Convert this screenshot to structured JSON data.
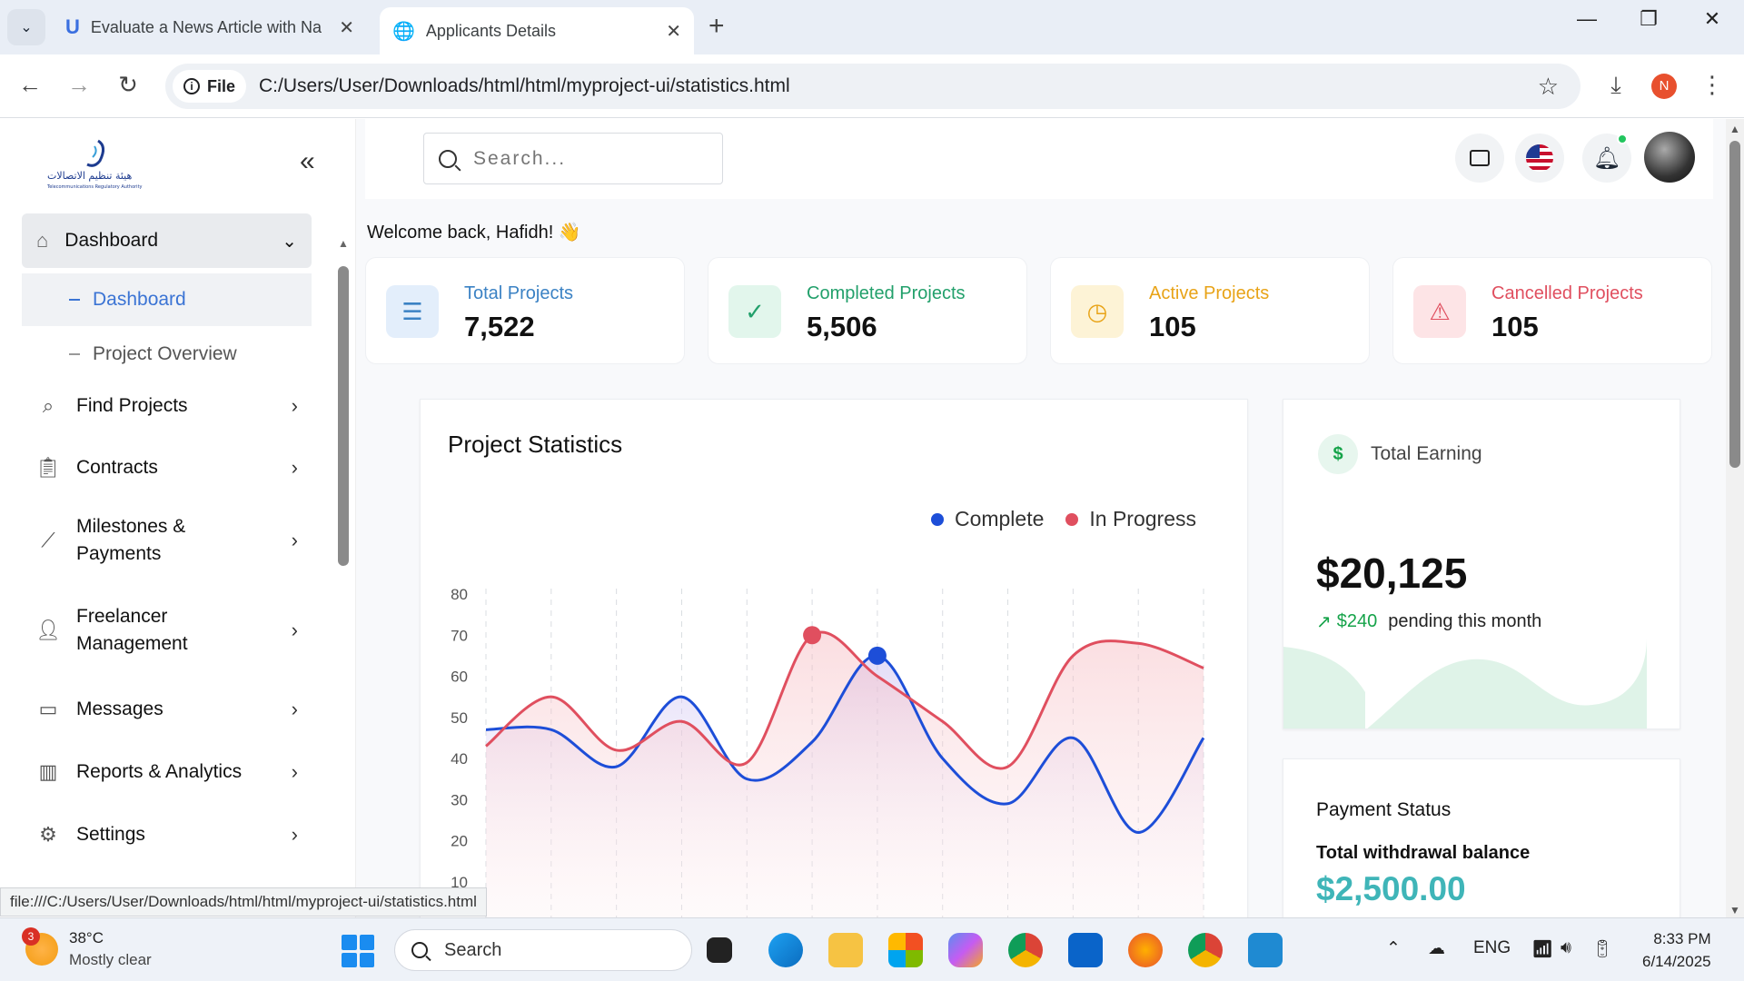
{
  "browser": {
    "tabs": [
      {
        "title": "Evaluate a News Article with Na",
        "active": false
      },
      {
        "title": "Applicants Details",
        "active": true
      }
    ],
    "url_scheme": "File",
    "url": "C:/Users/User/Downloads/html/html/myproject-ui/statistics.html",
    "profile_initial": "N",
    "status_url": "file:///C:/Users/User/Downloads/html/html/myproject-ui/statistics.html"
  },
  "sidebar": {
    "head": "Dashboard",
    "subitems": [
      {
        "label": "Dashboard",
        "active": true
      },
      {
        "label": "Project Overview",
        "active": false
      }
    ],
    "items": [
      {
        "label": "Find Projects",
        "icon": "search-icon"
      },
      {
        "label": "Contracts",
        "icon": "clipboard-icon"
      },
      {
        "label": "Milestones & Payments",
        "icon": "chart-line-icon"
      },
      {
        "label": "Freelancer Management",
        "icon": "user-icon"
      },
      {
        "label": "Messages",
        "icon": "message-icon"
      },
      {
        "label": "Reports & Analytics",
        "icon": "bar-chart-icon"
      },
      {
        "label": "Settings",
        "icon": "gear-icon"
      }
    ]
  },
  "topbar": {
    "search_placeholder": "Search..."
  },
  "welcome": "Welcome back, Hafidh! 👋",
  "stats": [
    {
      "label": "Total Projects",
      "value": "7,522",
      "color": "#3b82c4",
      "bg": "#e3eefb"
    },
    {
      "label": "Completed Projects",
      "value": "5,506",
      "color": "#22a06b",
      "bg": "#e2f6ec"
    },
    {
      "label": "Active Projects",
      "value": "105",
      "color": "#e8a317",
      "bg": "#fdf3d6"
    },
    {
      "label": "Cancelled Projects",
      "value": "105",
      "color": "#e04f5f",
      "bg": "#fde4e6"
    }
  ],
  "chart_data": {
    "type": "line",
    "title": "Project Statistics",
    "series": [
      {
        "name": "Complete",
        "color": "#1d4ed8",
        "values": [
          47,
          47,
          38,
          55,
          35,
          44,
          65,
          40,
          29,
          45,
          22,
          45
        ]
      },
      {
        "name": "In Progress",
        "color": "#e04f5f",
        "values": [
          43,
          55,
          42,
          49,
          39,
          70,
          60,
          49,
          38,
          65,
          68,
          62
        ]
      }
    ],
    "y_ticks": [
      10,
      20,
      30,
      40,
      50,
      60,
      70,
      80
    ],
    "ylim": [
      0,
      80
    ],
    "legend_position": "top-right",
    "grid": "vertical-dashed",
    "highlighted": [
      {
        "series": "In Progress",
        "index": 5
      },
      {
        "series": "Complete",
        "index": 6
      }
    ]
  },
  "earning": {
    "label": "Total Earning",
    "value": "$20,125",
    "pending_amount": "$240",
    "pending_text": "pending this month"
  },
  "payment": {
    "title": "Payment Status",
    "subtitle": "Total withdrawal balance",
    "value": "$2,500.00"
  },
  "taskbar": {
    "weather_badge": "3",
    "temperature": "38°C",
    "condition": "Mostly clear",
    "search_label": "Search",
    "lang": "ENG",
    "time": "8:33 PM",
    "date": "6/14/2025"
  }
}
